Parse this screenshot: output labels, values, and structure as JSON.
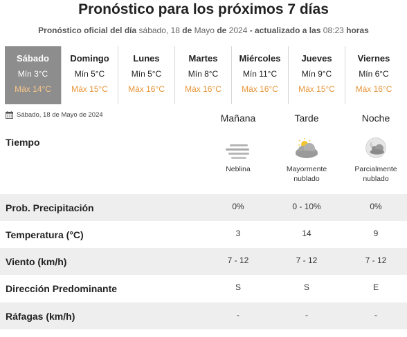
{
  "header": {
    "title": "Pronóstico para los próximos 7 días",
    "subtitle_prefix": "Pronóstico oficial del día",
    "subtitle_date_a": "sábado, 18",
    "subtitle_de1": "de",
    "subtitle_date_b": "Mayo",
    "subtitle_de2": "de",
    "subtitle_year": "2024",
    "subtitle_updated": "- actualizado a las",
    "subtitle_time": "08:23",
    "subtitle_suffix": "horas"
  },
  "days": [
    {
      "name": "Sábado",
      "min": "Mín 3°C",
      "max": "Máx 14°C",
      "active": true
    },
    {
      "name": "Domingo",
      "min": "Mín 5°C",
      "max": "Máx 15°C"
    },
    {
      "name": "Lunes",
      "min": "Mín 5°C",
      "max": "Máx 16°C"
    },
    {
      "name": "Martes",
      "min": "Mín 8°C",
      "max": "Máx 16°C"
    },
    {
      "name": "Miércoles",
      "min": "Mín 11°C",
      "max": "Máx 16°C"
    },
    {
      "name": "Jueves",
      "min": "Mín 9°C",
      "max": "Máx 15°C"
    },
    {
      "name": "Viernes",
      "min": "Mín 6°C",
      "max": "Máx 16°C"
    }
  ],
  "detail": {
    "date": "Sábado, 18 de Mayo de 2024",
    "date_icon": "calendar-icon",
    "periods": [
      "Mañana",
      "Tarde",
      "Noche"
    ],
    "tiempo_label": "Tiempo",
    "weather": [
      {
        "icon": "fog-icon",
        "desc_line1": "Neblina",
        "desc_line2": ""
      },
      {
        "icon": "mostly-cloudy-day-icon",
        "desc_line1": "Mayormente",
        "desc_line2": "nublado"
      },
      {
        "icon": "partly-cloudy-night-icon",
        "desc_line1": "Parcialmente",
        "desc_line2": "nublado"
      }
    ],
    "rows": [
      {
        "label": "Prob. Precipitación",
        "values": [
          "0%",
          "0 - 10%",
          "0%"
        ]
      },
      {
        "label": "Temperatura (°C)",
        "values": [
          "3",
          "14",
          "9"
        ]
      },
      {
        "label": "Viento (km/h)",
        "values": [
          "7 - 12",
          "7 - 12",
          "7 - 12"
        ]
      },
      {
        "label": "Dirección Predominante",
        "values": [
          "S",
          "S",
          "E"
        ]
      },
      {
        "label": "Ráfagas (km/h)",
        "values": [
          "-",
          "-",
          "-"
        ]
      }
    ]
  },
  "colors": {
    "active_day_bg": "#8d8d8d",
    "max_temp": "#e8963a",
    "row_shade": "#eeeeee"
  }
}
